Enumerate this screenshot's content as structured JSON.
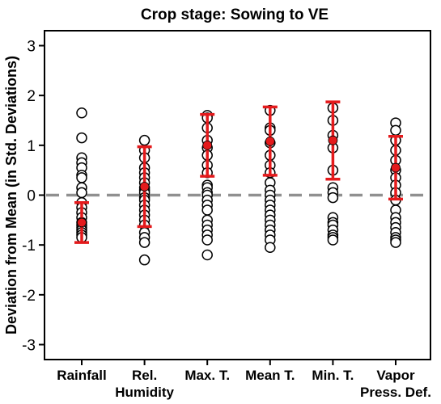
{
  "chart_data": {
    "type": "scatter",
    "title": "Crop stage: Sowing to VE",
    "ylabel": "Deviation from Mean (in Std. Deviations)",
    "xlabel": "",
    "ylim": [
      -3.3,
      3.3
    ],
    "yticks": [
      -3,
      -2,
      -1,
      0,
      1,
      2,
      3
    ],
    "reference_line": {
      "y": 0,
      "style": "dashed",
      "color": "#909090"
    },
    "grid": false,
    "categories": [
      {
        "lines": [
          "Rainfall"
        ]
      },
      {
        "lines": [
          "Rel.",
          "Humidity"
        ]
      },
      {
        "lines": [
          "Max. T."
        ]
      },
      {
        "lines": [
          "Mean T."
        ]
      },
      {
        "lines": [
          "Min. T."
        ]
      },
      {
        "lines": [
          "Vapor",
          "Press. Def."
        ]
      }
    ],
    "series": [
      {
        "category_index": 0,
        "points": [
          1.65,
          1.15,
          0.75,
          0.65,
          0.55,
          0.4,
          0.35,
          0.15,
          0.05,
          -0.15,
          -0.25,
          -0.35,
          -0.45,
          -0.55,
          -0.6,
          -0.65,
          -0.7,
          -0.75,
          -0.8,
          -0.85
        ],
        "mean": -0.55,
        "error_bar": [
          -0.95,
          -0.15
        ]
      },
      {
        "category_index": 1,
        "points": [
          1.1,
          0.9,
          0.75,
          0.55,
          0.45,
          0.35,
          0.25,
          0.15,
          0.1,
          0.05,
          -0.05,
          -0.1,
          -0.2,
          -0.3,
          -0.4,
          -0.5,
          -0.6,
          -0.75,
          -0.85,
          -0.95,
          -1.3
        ],
        "mean": 0.17,
        "error_bar": [
          -0.63,
          0.97
        ]
      },
      {
        "category_index": 2,
        "points": [
          1.6,
          1.55,
          1.35,
          1.1,
          0.95,
          0.8,
          0.6,
          0.45,
          0.2,
          0.15,
          0.05,
          0.0,
          -0.1,
          -0.2,
          -0.3,
          -0.5,
          -0.6,
          -0.7,
          -0.8,
          -0.9,
          -1.2
        ],
        "mean": 1.0,
        "error_bar": [
          0.38,
          1.62
        ]
      },
      {
        "category_index": 3,
        "points": [
          1.7,
          1.35,
          1.3,
          1.05,
          0.8,
          0.6,
          0.45,
          0.25,
          0.1,
          0.0,
          -0.1,
          -0.2,
          -0.3,
          -0.4,
          -0.5,
          -0.6,
          -0.7,
          -0.8,
          -0.9,
          -1.05
        ],
        "mean": 1.08,
        "error_bar": [
          0.4,
          1.77
        ]
      },
      {
        "category_index": 4,
        "points": [
          1.75,
          1.5,
          1.2,
          0.95,
          0.5,
          0.15,
          0.05,
          -0.05,
          -0.45,
          -0.55,
          -0.6,
          -0.7,
          -0.8,
          -0.85,
          -0.9
        ],
        "mean": 1.1,
        "error_bar": [
          0.32,
          1.87
        ]
      },
      {
        "category_index": 5,
        "points": [
          1.45,
          1.3,
          1.1,
          0.9,
          0.7,
          0.5,
          0.35,
          0.2,
          0.05,
          -0.1,
          -0.3,
          -0.45,
          -0.55,
          -0.65,
          -0.75,
          -0.85,
          -0.9,
          -0.95
        ],
        "mean": 0.55,
        "error_bar": [
          -0.08,
          1.18
        ]
      }
    ],
    "marker": {
      "points": "open-circle",
      "mean": "filled-circle"
    },
    "colors": {
      "points_stroke": "#000000",
      "points_fill": "#ffffff",
      "mean": "#e41a1c",
      "error_bar": "#e41a1c",
      "axis": "#000000"
    }
  }
}
